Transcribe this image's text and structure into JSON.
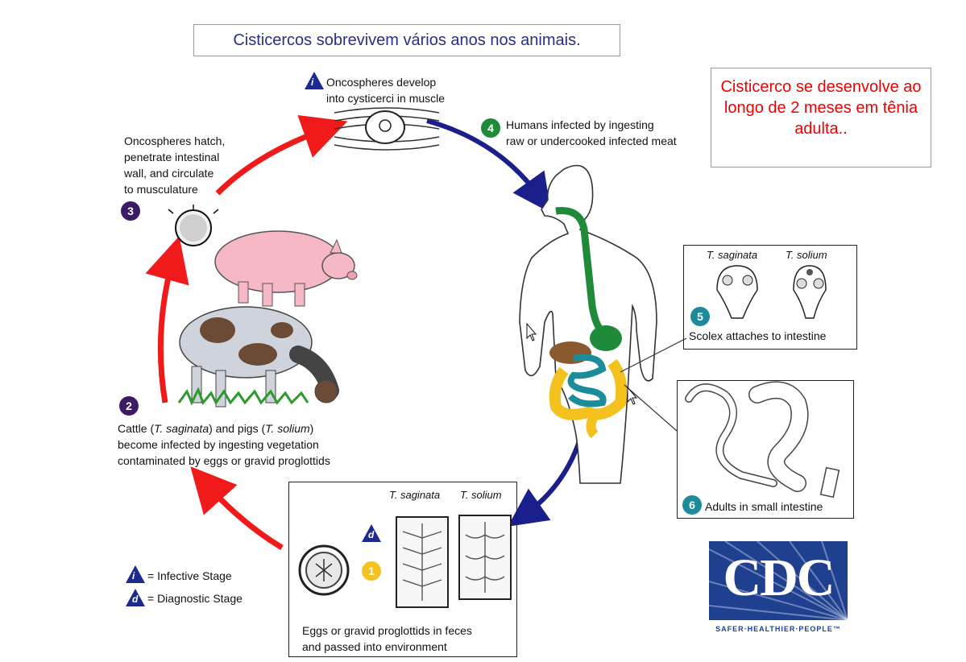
{
  "note_top": "Cisticercos sobrevivem vários anos nos animais.",
  "note_right": "Cisticerco se desenvolve ao longo de 2 meses em tênia adulta..",
  "stages": {
    "s1": {
      "num": "1",
      "text_1": "Eggs or gravid proglottids in feces",
      "text_2": "and passed into environment"
    },
    "s2": {
      "num": "2",
      "line1_pre": "Cattle (",
      "line1_sp1": "T. saginata",
      "line1_mid": ") and pigs (",
      "line1_sp2": "T. solium",
      "line1_post": ")",
      "line2": "become infected by ingesting vegetation",
      "line3": "contaminated by eggs or gravid proglottids"
    },
    "s3": {
      "num": "3",
      "text_1": "Oncospheres hatch,",
      "text_2": "penetrate intestinal",
      "text_3": "wall, and circulate",
      "text_4": "to musculature"
    },
    "s_i": {
      "icon": "i",
      "text_1": "Oncospheres develop",
      "text_2": "into cysticerci in muscle"
    },
    "s4": {
      "num": "4",
      "text_1": "Humans infected by ingesting",
      "text_2": "raw or undercooked infected meat"
    },
    "s5": {
      "num": "5",
      "text": "Scolex attaches to intestine",
      "sp1": "T. saginata",
      "sp2": "T. solium"
    },
    "s6": {
      "num": "6",
      "text": "Adults in small intestine"
    },
    "s1_species": {
      "sp1": "T. saginata",
      "sp2": "T. solium",
      "icon_d": "d"
    }
  },
  "legend": {
    "infective_icon": "i",
    "infective_label": "= Infective Stage",
    "diagnostic_icon": "d",
    "diagnostic_label": "= Diagnostic Stage"
  },
  "logo": {
    "word": "CDC",
    "tagline": "SAFER·HEALTHIER·PEOPLE™"
  },
  "colors": {
    "red_arrow": "#f01a1a",
    "blue_arrow": "#1a1f8c",
    "stage_purple": "#3c1a66",
    "stage_green": "#1f8a3a",
    "stage_teal": "#1d8c9a",
    "stage_yellow": "#f4c21f",
    "cdc_blue": "#1f3f8f"
  }
}
